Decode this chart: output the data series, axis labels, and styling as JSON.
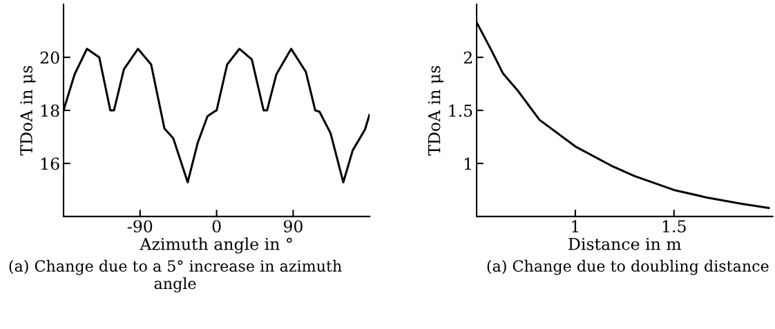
{
  "chart_data": [
    {
      "type": "line",
      "xlabel": "Azimuth angle in °",
      "ylabel": "TDoA in μs",
      "annotations": [
        "(a) Change due to a 5° increase in azimuth angle"
      ],
      "xlim": [
        -180,
        180
      ],
      "xticks": [
        -90,
        0,
        90
      ],
      "ylim": [
        14,
        22
      ],
      "yticks": [
        16,
        18,
        20
      ],
      "grid": false,
      "legend": false,
      "series": [
        {
          "color": "#000000",
          "x": [
            -180,
            -167,
            -152.5,
            -138,
            -125,
            -120.7,
            -109,
            -92.5,
            -77,
            -61.4,
            -51,
            -34,
            -22.3,
            -10.7,
            -2,
            0,
            12.4,
            26.9,
            41.4,
            55.3,
            59.3,
            70.3,
            87.7,
            105,
            116,
            121,
            134,
            149,
            160,
            174.5,
            179.7
          ],
          "values": [
            18.0,
            19.36,
            20.32,
            20.0,
            18.0,
            18.0,
            19.55,
            20.32,
            19.73,
            17.32,
            16.95,
            15.29,
            16.77,
            17.78,
            17.97,
            18.0,
            19.73,
            20.32,
            19.92,
            18.0,
            18.0,
            19.36,
            20.32,
            19.45,
            18.0,
            17.95,
            17.14,
            15.29,
            16.49,
            17.28,
            17.83
          ]
        }
      ]
    },
    {
      "type": "line",
      "xlabel": "Distance in m",
      "ylabel": "TDoA in μs",
      "annotations": [
        "(a) Change due to doubling distance"
      ],
      "xlim": [
        0.5,
        2
      ],
      "xticks": [
        1,
        1.5
      ],
      "ylim": [
        0.5,
        2.5
      ],
      "yticks": [
        1,
        1.5,
        2
      ],
      "grid": false,
      "legend": false,
      "series": [
        {
          "color": "#000000",
          "x": [
            0.5,
            0.578,
            0.633,
            0.711,
            0.819,
            1.0,
            1.181,
            1.301,
            1.5,
            1.663,
            1.843,
            1.98
          ],
          "values": [
            2.33,
            2.055,
            1.85,
            1.68,
            1.41,
            1.16,
            0.98,
            0.88,
            0.75,
            0.68,
            0.62,
            0.58
          ]
        }
      ]
    }
  ]
}
